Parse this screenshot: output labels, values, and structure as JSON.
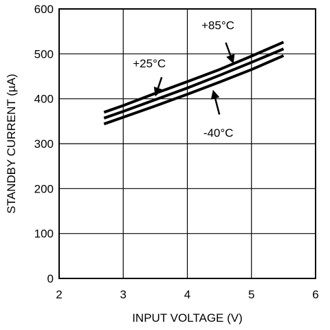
{
  "chart_data": {
    "type": "line",
    "title": "",
    "xlabel": "INPUT VOLTAGE (V)",
    "ylabel": "STANDBY CURRENT (µA)",
    "xlim": [
      2,
      6
    ],
    "ylim": [
      0,
      600
    ],
    "xticks": [
      2,
      3,
      4,
      5,
      6
    ],
    "yticks": [
      0,
      100,
      200,
      300,
      400,
      500,
      600
    ],
    "grid": true,
    "legend": "none",
    "series": [
      {
        "name": "+85°C",
        "x": [
          2.7,
          3.0,
          3.5,
          4.0,
          4.5,
          5.0,
          5.5
        ],
        "y": [
          370,
          385,
          412,
          438,
          465,
          495,
          526
        ]
      },
      {
        "name": "+25°C",
        "x": [
          2.7,
          3.0,
          3.5,
          4.0,
          4.5,
          5.0,
          5.5
        ],
        "y": [
          357,
          372,
          398,
          424,
          452,
          481,
          511
        ]
      },
      {
        "name": "-40°C",
        "x": [
          2.7,
          3.0,
          3.5,
          4.0,
          4.5,
          5.0,
          5.5
        ],
        "y": [
          344,
          359,
          384,
          410,
          437,
          465,
          496
        ]
      }
    ],
    "annotations": [
      {
        "text": "+85°C",
        "series": "+85°C",
        "label_x": 4.22,
        "label_y": 555,
        "arrow_from_x": 4.6,
        "arrow_from_y": 525,
        "arrow_to_x": 4.72,
        "arrow_to_y": 478
      },
      {
        "text": "+25°C",
        "series": "+25°C",
        "label_x": 3.15,
        "label_y": 470,
        "arrow_from_x": 3.6,
        "arrow_from_y": 448,
        "arrow_to_x": 3.5,
        "arrow_to_y": 405
      },
      {
        "text": "-40°C",
        "series": "-40°C",
        "label_x": 4.25,
        "label_y": 315,
        "arrow_from_x": 4.5,
        "arrow_from_y": 365,
        "arrow_to_x": 4.4,
        "arrow_to_y": 420
      }
    ]
  }
}
